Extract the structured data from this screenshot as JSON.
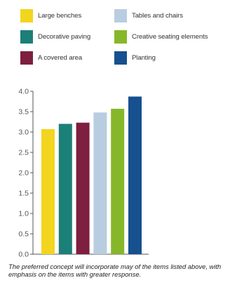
{
  "chart_data": {
    "type": "bar",
    "categories": [
      "Large benches",
      "Decorative paving",
      "A covered area",
      "Tables and chairs",
      "Creative seating elements",
      "Planting"
    ],
    "values": [
      3.07,
      3.2,
      3.23,
      3.48,
      3.57,
      3.87
    ],
    "colors": [
      "#f2d51e",
      "#1c7f78",
      "#7e1f3f",
      "#b9cde0",
      "#86b72a",
      "#16508e"
    ],
    "ylim": [
      0,
      4.0
    ],
    "yticks": [
      "0.0",
      "0.5",
      "1.0",
      "1.5",
      "2.0",
      "2.5",
      "3.0",
      "3.5",
      "4.0"
    ],
    "ytick_values": [
      0,
      0.5,
      1.0,
      1.5,
      2.0,
      2.5,
      3.0,
      3.5,
      4.0
    ],
    "grid": false,
    "legend_position": "top"
  },
  "caption": "The preferred concept will incorporate may of the items listed above, with emphasis on the items with greater response."
}
